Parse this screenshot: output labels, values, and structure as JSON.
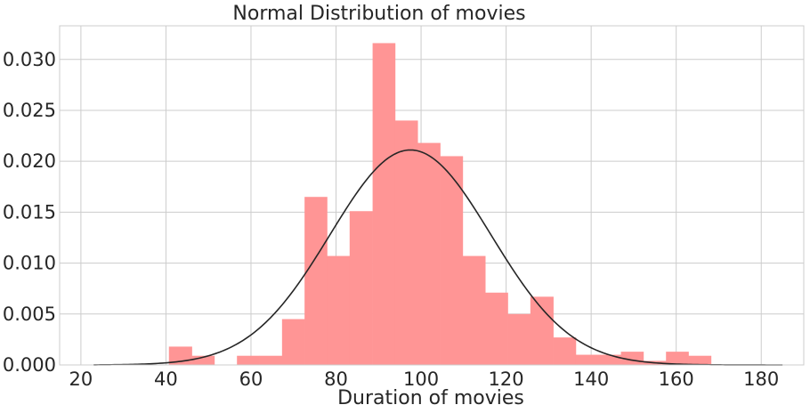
{
  "chart_data": {
    "type": "bar",
    "subtype": "histogram-with-fitted-normal-curve",
    "title": "Normal Distribution of movies",
    "xlabel": "Duration of movies",
    "ylabel": "",
    "xlim": [
      15,
      190
    ],
    "ylim": [
      0,
      0.0333
    ],
    "x_ticks": [
      20,
      40,
      60,
      80,
      100,
      120,
      140,
      160,
      180
    ],
    "x_tick_labels": [
      "20",
      "40",
      "60",
      "80",
      "100",
      "120",
      "140",
      "160",
      "180"
    ],
    "y_ticks": [
      0,
      0.005,
      0.01,
      0.015,
      0.02,
      0.025,
      0.03
    ],
    "y_tick_labels": [
      "0.000",
      "0.005",
      "0.010",
      "0.015",
      "0.020",
      "0.025",
      "0.030"
    ],
    "grid": true,
    "colors": {
      "bars": "#ff9595",
      "curve": "#262626",
      "grid": "#cccccc"
    },
    "histogram": {
      "bin_edges": [
        40.7,
        46.1,
        51.4,
        56.7,
        62.0,
        67.3,
        72.6,
        77.9,
        83.2,
        88.6,
        93.9,
        99.2,
        104.5,
        109.8,
        115.1,
        120.4,
        125.7,
        131.1,
        136.4,
        141.7,
        147.0,
        152.3,
        157.6,
        162.9,
        168.2
      ],
      "densities": [
        0.0018,
        0.0009,
        0,
        0.0009,
        0.0009,
        0.0045,
        0.0165,
        0.0107,
        0.0151,
        0.0316,
        0.024,
        0.0218,
        0.0205,
        0.0107,
        0.0071,
        0.005,
        0.0067,
        0.0027,
        0.001,
        0.001,
        0.0013,
        0.0004,
        0.0013,
        0.0009
      ]
    },
    "fitted_normal": {
      "mean": 97.5,
      "std": 18.9,
      "x_range": [
        23,
        185
      ]
    }
  }
}
